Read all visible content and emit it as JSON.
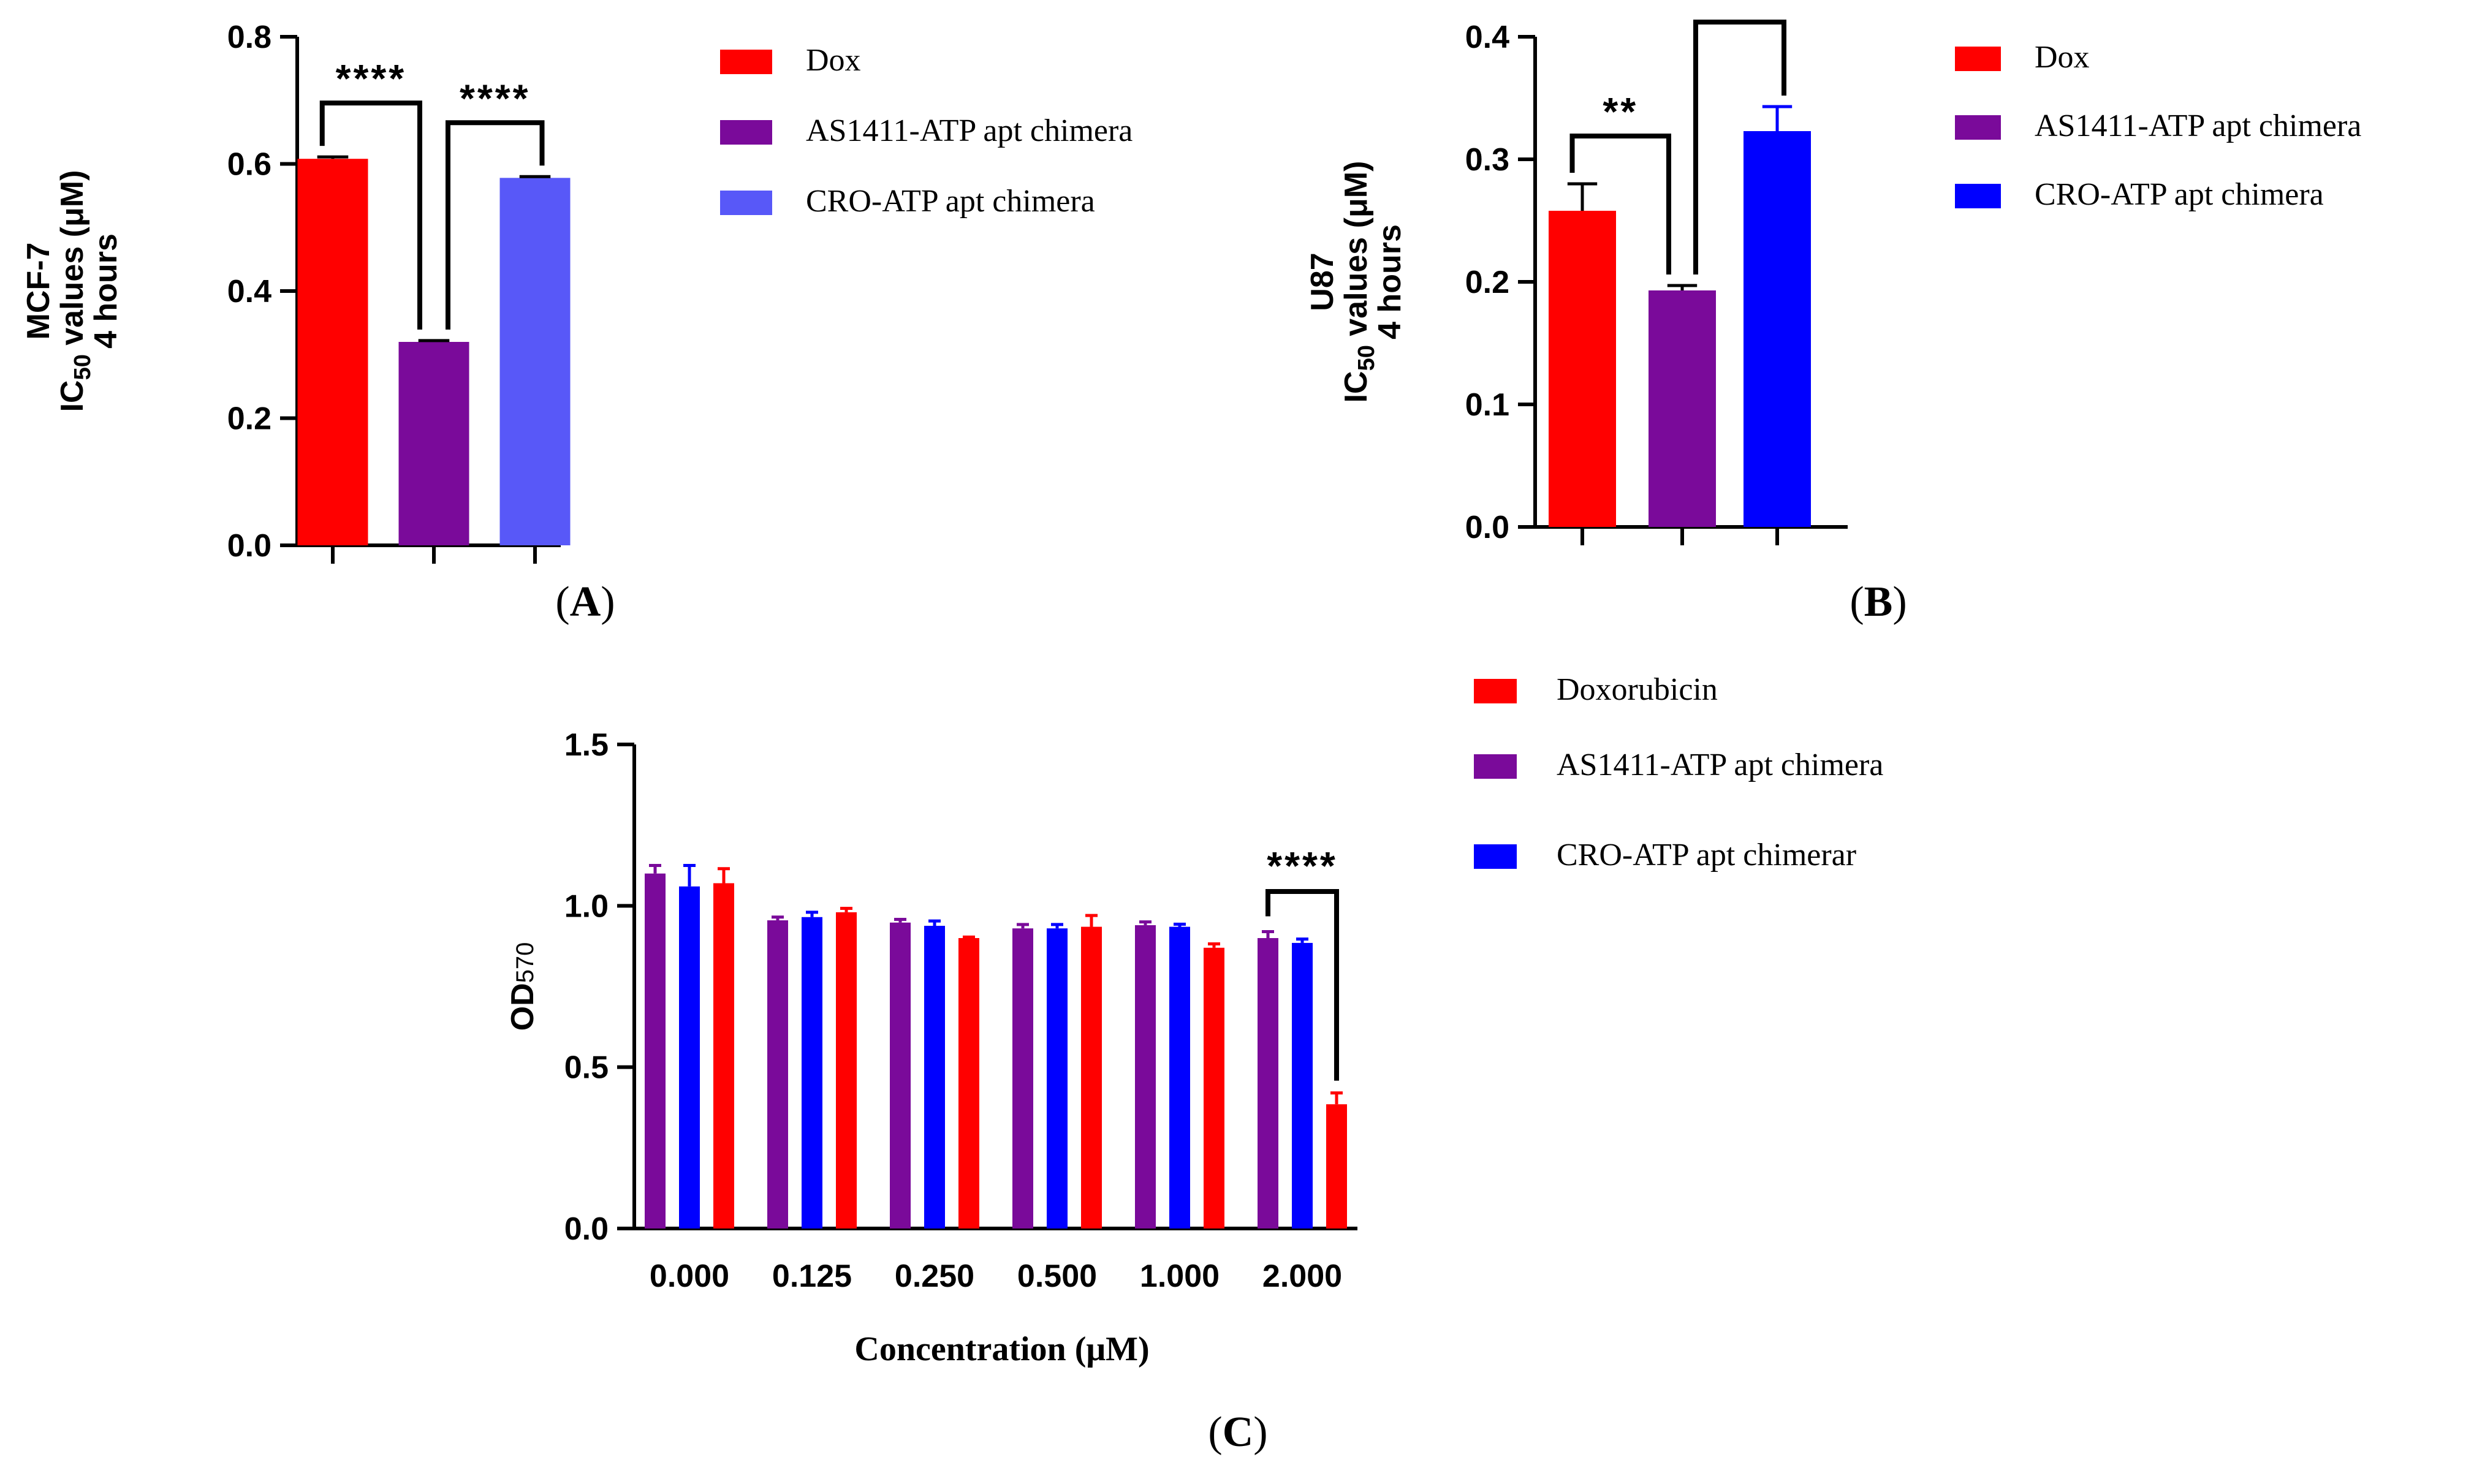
{
  "chart_data": [
    {
      "panel": "A",
      "panel_label": "(A)",
      "type": "bar",
      "ylabel_lines": [
        "MCF-7",
        "IC50 values (μM)",
        "4 hours"
      ],
      "ylim": [
        0,
        0.8
      ],
      "yticks": [
        "0.0",
        "0.2",
        "0.4",
        "0.6",
        "0.8"
      ],
      "ytick_values": [
        0,
        0.2,
        0.4,
        0.6,
        0.8
      ],
      "categories": [
        "Dox",
        "AS1411-ATP apt chimera",
        "CRO-ATP apt chimera"
      ],
      "values": [
        0.608,
        0.32,
        0.578
      ],
      "errors": [
        0.003,
        0.002,
        0.002
      ],
      "colors": [
        "#ff0000",
        "#7a0a9a",
        "#5858f8"
      ],
      "legend": [
        "Dox",
        "AS1411-ATP apt chimera",
        "CRO-ATP apt chimera"
      ],
      "legend_position": "right",
      "significance": [
        {
          "from": 0,
          "to": 1,
          "label": "****"
        },
        {
          "from": 1,
          "to": 2,
          "label": "****"
        }
      ]
    },
    {
      "panel": "B",
      "panel_label": "(B)",
      "type": "bar",
      "ylabel_lines": [
        "U87",
        "IC50 values (μM)",
        "4 hours"
      ],
      "ylim": [
        0,
        0.4
      ],
      "yticks": [
        "0.0",
        "0.1",
        "0.2",
        "0.3",
        "0.4"
      ],
      "ytick_values": [
        0,
        0.1,
        0.2,
        0.3,
        0.4
      ],
      "categories": [
        "Dox",
        "AS1411-ATP apt chimera",
        "CRO-ATP apt chimera"
      ],
      "values": [
        0.258,
        0.193,
        0.323
      ],
      "errors": [
        0.022,
        0.004,
        0.02
      ],
      "colors": [
        "#ff0000",
        "#7a0a9a",
        "#0000ff"
      ],
      "legend": [
        "Dox",
        "AS1411-ATP apt chimera",
        "CRO-ATP apt chimera"
      ],
      "legend_position": "right",
      "significance": [
        {
          "from": 0,
          "to": 1,
          "label": "**"
        },
        {
          "from": 1,
          "to": 2,
          "label": "****"
        }
      ]
    },
    {
      "panel": "C",
      "panel_label": "(C)",
      "type": "bar",
      "ylabel": "OD570",
      "xlabel": "Concentration (μM)",
      "ylim": [
        0,
        1.5
      ],
      "yticks": [
        "0.0",
        "0.5",
        "1.0",
        "1.5"
      ],
      "ytick_values": [
        0,
        0.5,
        1.0,
        1.5
      ],
      "categories": [
        "0.000",
        "0.125",
        "0.250",
        "0.500",
        "1.000",
        "2.000"
      ],
      "series": [
        {
          "name": "AS1411-ATP apt chimera",
          "color": "#7a0a9a",
          "values": [
            1.1,
            0.955,
            0.948,
            0.93,
            0.94,
            0.9
          ],
          "errors": [
            0.025,
            0.01,
            0.01,
            0.012,
            0.01,
            0.02
          ]
        },
        {
          "name": "CRO-ATP apt chimerar",
          "color": "#0000ff",
          "values": [
            1.06,
            0.965,
            0.938,
            0.93,
            0.935,
            0.885
          ],
          "errors": [
            0.065,
            0.015,
            0.015,
            0.012,
            0.008,
            0.012
          ]
        },
        {
          "name": "Doxorubicin",
          "color": "#ff0000",
          "values": [
            1.07,
            0.98,
            0.9,
            0.935,
            0.87,
            0.385
          ],
          "errors": [
            0.045,
            0.012,
            0.003,
            0.035,
            0.012,
            0.035
          ]
        }
      ],
      "legend": [
        {
          "label": "Doxorubicin",
          "color": "#ff0000"
        },
        {
          "label": "AS1411-ATP apt chimera",
          "color": "#7a0a9a"
        },
        {
          "label": "CRO-ATP apt chimerar",
          "color": "#0000ff"
        }
      ],
      "legend_position": "top-right",
      "significance": [
        {
          "category": 5,
          "from_series": 0,
          "to_series": 2,
          "label": "****"
        }
      ]
    }
  ]
}
